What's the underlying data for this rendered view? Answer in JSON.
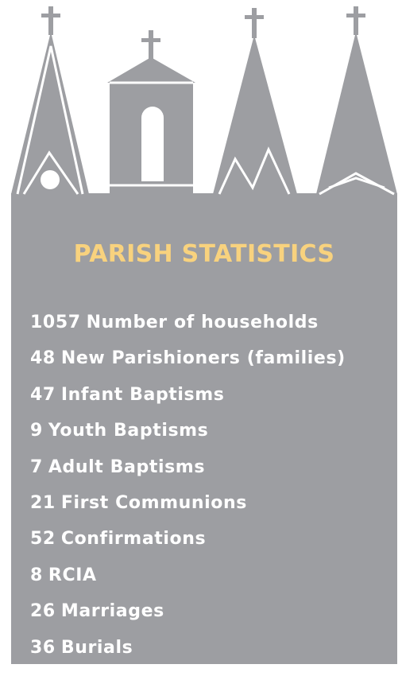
{
  "title": "PARISH STATISTICS",
  "items": [
    {
      "number": 1057,
      "label": "Number of households"
    },
    {
      "number": 48,
      "label": "New Parishioners (families)"
    },
    {
      "number": 47,
      "label": "Infant Baptisms"
    },
    {
      "number": 9,
      "label": "Youth Baptisms"
    },
    {
      "number": 7,
      "label": "Adult Baptisms"
    },
    {
      "number": 21,
      "label": "First Communions"
    },
    {
      "number": 52,
      "label": "Confirmations"
    },
    {
      "number": 8,
      "label": "RCIA"
    },
    {
      "number": 26,
      "label": "Marriages"
    },
    {
      "number": 36,
      "label": "Burials"
    }
  ]
}
